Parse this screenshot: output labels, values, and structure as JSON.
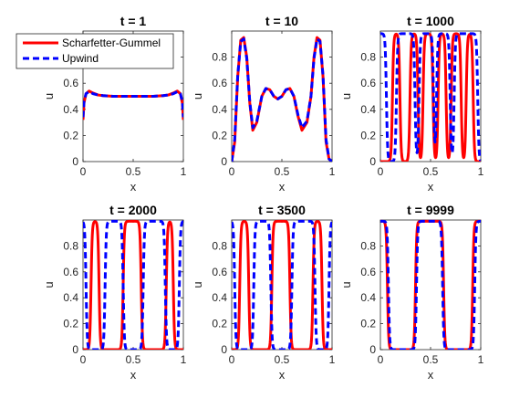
{
  "chart_data": {
    "type": "line",
    "legend": [
      {
        "name": "Scharfetter-Gummel",
        "color": "#ff0000",
        "style": "solid"
      },
      {
        "name": "Upwind",
        "color": "#0000ff",
        "style": "dashed"
      }
    ],
    "legend_placement": "top-left of first panel",
    "panels": [
      {
        "title": "t = 1",
        "xlabel": "x",
        "ylabel": "u",
        "xlim": [
          0,
          1
        ],
        "ylim": [
          0,
          1
        ],
        "xticks": [
          "0",
          "0.5",
          "1"
        ],
        "yticks": [
          "0",
          "0.2",
          "0.4",
          "0.6",
          "0.8"
        ],
        "series": [
          {
            "name": "Scharfetter-Gummel",
            "x": [
              0,
              0.01,
              0.03,
              0.06,
              0.1,
              0.15,
              0.2,
              0.3,
              0.4,
              0.5,
              0.6,
              0.7,
              0.8,
              0.85,
              0.9,
              0.94,
              0.97,
              0.99,
              1
            ],
            "y": [
              0.32,
              0.45,
              0.52,
              0.54,
              0.525,
              0.51,
              0.505,
              0.5,
              0.5,
              0.5,
              0.5,
              0.5,
              0.505,
              0.51,
              0.525,
              0.54,
              0.52,
              0.45,
              0.32
            ]
          },
          {
            "name": "Upwind",
            "x": [
              0,
              0.01,
              0.03,
              0.06,
              0.1,
              0.15,
              0.2,
              0.3,
              0.4,
              0.5,
              0.6,
              0.7,
              0.8,
              0.85,
              0.9,
              0.94,
              0.97,
              0.99,
              1
            ],
            "y": [
              0.34,
              0.46,
              0.52,
              0.535,
              0.52,
              0.51,
              0.505,
              0.5,
              0.5,
              0.5,
              0.5,
              0.5,
              0.505,
              0.51,
              0.52,
              0.535,
              0.52,
              0.46,
              0.34
            ]
          }
        ]
      },
      {
        "title": "t = 10",
        "xlabel": "x",
        "ylabel": "u",
        "xlim": [
          0,
          1
        ],
        "ylim": [
          0,
          1
        ],
        "xticks": [
          "0",
          "0.5",
          "1"
        ],
        "yticks": [
          "0",
          "0.2",
          "0.4",
          "0.6",
          "0.8"
        ],
        "series": [
          {
            "name": "Scharfetter-Gummel",
            "x": [
              0,
              0.03,
              0.06,
              0.09,
              0.12,
              0.15,
              0.18,
              0.21,
              0.25,
              0.3,
              0.34,
              0.38,
              0.42,
              0.46,
              0.5,
              0.54,
              0.58,
              0.62,
              0.66,
              0.7,
              0.75,
              0.79,
              0.82,
              0.85,
              0.88,
              0.91,
              0.94,
              0.97,
              1
            ],
            "y": [
              0.0,
              0.15,
              0.65,
              0.93,
              0.95,
              0.8,
              0.45,
              0.24,
              0.3,
              0.5,
              0.56,
              0.55,
              0.5,
              0.48,
              0.5,
              0.55,
              0.56,
              0.5,
              0.35,
              0.24,
              0.3,
              0.5,
              0.8,
              0.95,
              0.93,
              0.65,
              0.15,
              0.02,
              0.0
            ]
          },
          {
            "name": "Upwind",
            "x": [
              0,
              0.03,
              0.06,
              0.09,
              0.12,
              0.15,
              0.18,
              0.21,
              0.25,
              0.3,
              0.34,
              0.38,
              0.42,
              0.46,
              0.5,
              0.54,
              0.58,
              0.62,
              0.66,
              0.7,
              0.75,
              0.79,
              0.82,
              0.85,
              0.88,
              0.91,
              0.94,
              0.97,
              1
            ],
            "y": [
              0.0,
              0.17,
              0.66,
              0.92,
              0.94,
              0.79,
              0.46,
              0.26,
              0.31,
              0.5,
              0.56,
              0.55,
              0.5,
              0.48,
              0.5,
              0.55,
              0.56,
              0.5,
              0.36,
              0.26,
              0.31,
              0.5,
              0.79,
              0.94,
              0.92,
              0.66,
              0.17,
              0.02,
              0.0
            ]
          }
        ]
      },
      {
        "title": "t = 1000",
        "xlabel": "x",
        "ylabel": "u",
        "xlim": [
          0,
          1
        ],
        "ylim": [
          0,
          1
        ],
        "xticks": [
          "0",
          "0.5",
          "1"
        ],
        "yticks": [
          "0",
          "0.2",
          "0.4",
          "0.6",
          "0.8"
        ],
        "series": [
          {
            "name": "Scharfetter-Gummel",
            "profile": "square",
            "levels": [
              0.0,
              0.98
            ],
            "transitions": [
              0.12,
              0.195,
              0.295,
              0.375,
              0.425,
              0.525,
              0.575,
              0.655,
              0.705,
              0.805,
              0.855,
              0.925
            ],
            "start_high": false
          },
          {
            "name": "Upwind",
            "profile": "square",
            "levels": [
              0.0,
              0.98
            ],
            "transitions": [
              0.06,
              0.16,
              0.345,
              0.385,
              0.53,
              0.56,
              0.695,
              0.735,
              0.97
            ],
            "start_high": true
          }
        ]
      },
      {
        "title": "t = 2000",
        "xlabel": "x",
        "ylabel": "u",
        "xlim": [
          0,
          1
        ],
        "ylim": [
          0,
          1
        ],
        "xticks": [
          "0",
          "0.5",
          "1"
        ],
        "yticks": [
          "0",
          "0.2",
          "0.4",
          "0.6",
          "0.8"
        ],
        "series": [
          {
            "name": "Scharfetter-Gummel",
            "profile": "square",
            "levels": [
              0.0,
              0.99
            ],
            "transitions": [
              0.08,
              0.16,
              0.4,
              0.58,
              0.83,
              0.9
            ],
            "start_high": false
          },
          {
            "name": "Upwind",
            "profile": "square",
            "levels": [
              0.0,
              0.99
            ],
            "transitions": [
              0.03,
              0.22,
              0.4,
              0.6,
              0.82,
              0.96
            ],
            "start_high": true
          }
        ]
      },
      {
        "title": "t = 3500",
        "xlabel": "x",
        "ylabel": "u",
        "xlim": [
          0,
          1
        ],
        "ylim": [
          0,
          1
        ],
        "xticks": [
          "0",
          "0.5",
          "1"
        ],
        "yticks": [
          "0",
          "0.2",
          "0.4",
          "0.6",
          "0.8"
        ],
        "series": [
          {
            "name": "Scharfetter-Gummel",
            "profile": "square",
            "levels": [
              0.0,
              0.99
            ],
            "transitions": [
              0.08,
              0.17,
              0.4,
              0.58,
              0.81,
              0.9
            ],
            "start_high": false
          },
          {
            "name": "Upwind",
            "profile": "square",
            "levels": [
              0.0,
              0.99
            ],
            "transitions": [
              0.03,
              0.22,
              0.39,
              0.6,
              0.83,
              0.97
            ],
            "start_high": true
          }
        ]
      },
      {
        "title": "t = 9999",
        "xlabel": "x",
        "ylabel": "u",
        "xlim": [
          0,
          1
        ],
        "ylim": [
          0,
          1
        ],
        "xticks": [
          "0",
          "0.5",
          "1"
        ],
        "yticks": [
          "0",
          "0.2",
          "0.4",
          "0.6",
          "0.8"
        ],
        "series": [
          {
            "name": "Scharfetter-Gummel",
            "profile": "square",
            "levels": [
              0.0,
              0.99
            ],
            "transitions": [
              0.07,
              0.35,
              0.63,
              0.92
            ],
            "start_high": true
          },
          {
            "name": "Upwind",
            "profile": "square",
            "levels": [
              0.0,
              0.99
            ],
            "transitions": [
              0.08,
              0.36,
              0.62,
              0.94
            ],
            "start_high": true
          }
        ]
      }
    ]
  }
}
